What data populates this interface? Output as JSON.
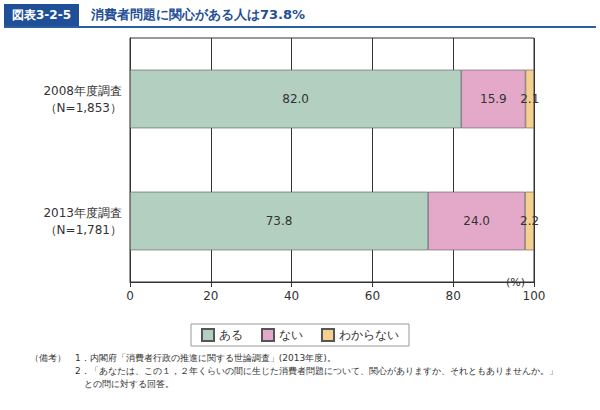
{
  "chart_data": {
    "type": "bar",
    "title": "消費者問題に関心がある人は73.8%",
    "figure_label": "図表3-2-5",
    "categories": [
      "2008年度調査\n（N=1,853）",
      "2013年度調査\n（N=1,781）"
    ],
    "series": [
      {
        "name": "ある",
        "color": "#b2cfbf",
        "values": [
          82.0,
          73.8
        ],
        "value_labels": [
          "82.0",
          "73.8"
        ]
      },
      {
        "name": "ない",
        "color": "#e4a9c9",
        "values": [
          15.9,
          24.0
        ],
        "value_labels": [
          "15.9",
          "24.0"
        ]
      },
      {
        "name": "わからない",
        "color": "#f6d08e",
        "values": [
          2.1,
          2.2
        ],
        "value_labels": [
          "2.1",
          "2.2"
        ]
      }
    ],
    "xlabel": "(%)",
    "xlim": [
      0,
      100
    ],
    "xticks": [
      0,
      20,
      40,
      60,
      80,
      100
    ],
    "orientation": "horizontal",
    "stacked": true,
    "data_labels": true,
    "grid": true,
    "legend": "bottom",
    "notes": [
      "（備考）　1．内閣府「消費者行政の推進に関する世論調査」(2013年度)。",
      "　　　　　2．「あなたは、この１，２年くらいの間に生じた消費者問題について、関心がありますか、それともありませんか。」\n　　　　　　との問に対する回答。"
    ]
  }
}
